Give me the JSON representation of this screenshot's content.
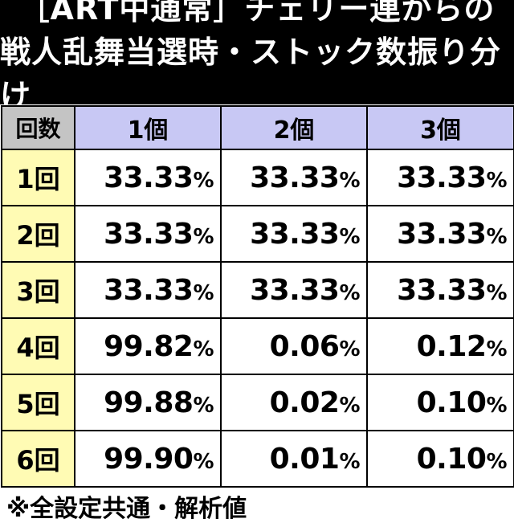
{
  "title": {
    "line1": "［ART中通常］チェリー連からの",
    "line2": "戦人乱舞当選時・ストック数振り分け"
  },
  "table": {
    "header_label": "回数",
    "columns": [
      "1個",
      "2個",
      "3個"
    ],
    "rows": [
      {
        "label": "1回",
        "values": [
          "33.33",
          "33.33",
          "33.33"
        ]
      },
      {
        "label": "2回",
        "values": [
          "33.33",
          "33.33",
          "33.33"
        ]
      },
      {
        "label": "3回",
        "values": [
          "33.33",
          "33.33",
          "33.33"
        ]
      },
      {
        "label": "4回",
        "values": [
          "99.82",
          "0.06",
          "0.12"
        ]
      },
      {
        "label": "5回",
        "values": [
          "99.88",
          "0.02",
          "0.10"
        ]
      },
      {
        "label": "6回",
        "values": [
          "99.90",
          "0.01",
          "0.10"
        ]
      }
    ],
    "unit": "%"
  },
  "footnote": "※全設定共通・解析値",
  "colors": {
    "title_bg": "#000000",
    "header_label_bg": "#c4c4c4",
    "header_col_bg": "#c8c8f4",
    "row_label_bg": "#fffbb4"
  }
}
